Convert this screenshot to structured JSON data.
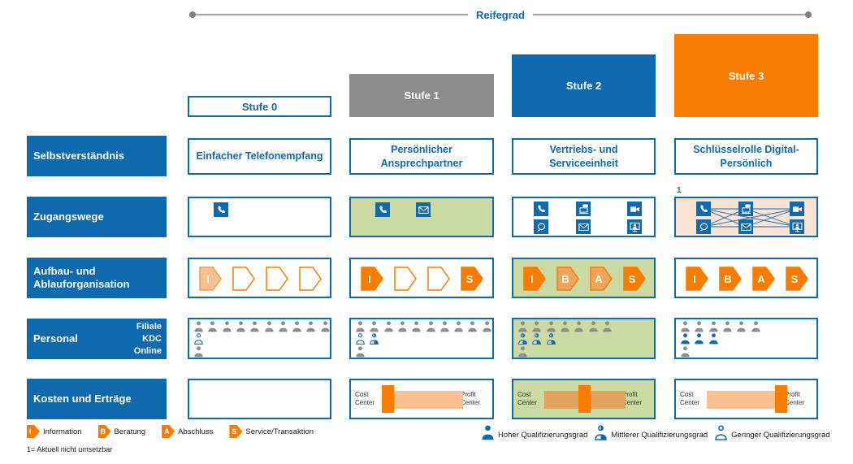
{
  "maturity_axis": {
    "label": "Reifegrad"
  },
  "columns": [
    {
      "label": "Stufe 0",
      "style": "outline"
    },
    {
      "label": "Stufe 1",
      "style": "gray"
    },
    {
      "label": "Stufe 2",
      "style": "blue"
    },
    {
      "label": "Stufe 3",
      "style": "orange"
    }
  ],
  "row_labels": [
    {
      "label": "Selbstverständnis"
    },
    {
      "label": "Zugangswege"
    },
    {
      "label": "Aufbau- und Ablauforganisation"
    },
    {
      "label": "Personal",
      "sublabels": [
        "Filiale",
        "KDC",
        "Online"
      ]
    },
    {
      "label": "Kosten und Erträge"
    }
  ],
  "selbstverstaendnis": [
    "Einfacher Telefonempfang",
    "Persönlicher Ansprechpartner",
    "Vertriebs- und Serviceeinheit",
    "Schlüsselrolle Digital-Persönlich"
  ],
  "zugangswege": [
    {
      "bg": "white",
      "layout": "single",
      "icons": [
        "phone-icon"
      ],
      "network": false,
      "note": ""
    },
    {
      "bg": "green",
      "layout": "single",
      "icons": [
        "phone-icon",
        "mail-icon"
      ],
      "network": false,
      "note": ""
    },
    {
      "bg": "white",
      "layout": "grid",
      "icons": [
        "phone-icon",
        "laptop-chat-icon",
        "video-camera-icon",
        "chat-bubble-icon",
        "mail-icon",
        "screen-person-icon"
      ],
      "network": false,
      "note": ""
    },
    {
      "bg": "peach",
      "layout": "grid",
      "icons": [
        "phone-icon",
        "laptop-chat-icon",
        "video-camera-icon",
        "chat-bubble-icon",
        "mail-icon",
        "screen-person-icon"
      ],
      "network": true,
      "note": "1"
    }
  ],
  "organisation": [
    {
      "bg": "white",
      "steps": [
        {
          "letter": "I",
          "fill": "light"
        },
        {
          "letter": "",
          "fill": "empty"
        },
        {
          "letter": "",
          "fill": "empty"
        },
        {
          "letter": "",
          "fill": "empty"
        }
      ]
    },
    {
      "bg": "white",
      "steps": [
        {
          "letter": "I",
          "fill": "solid"
        },
        {
          "letter": "",
          "fill": "empty"
        },
        {
          "letter": "",
          "fill": "empty"
        },
        {
          "letter": "S",
          "fill": "solid"
        }
      ]
    },
    {
      "bg": "green",
      "steps": [
        {
          "letter": "I",
          "fill": "solid"
        },
        {
          "letter": "B",
          "fill": "medium"
        },
        {
          "letter": "A",
          "fill": "medium"
        },
        {
          "letter": "S",
          "fill": "solid"
        }
      ]
    },
    {
      "bg": "white",
      "steps": [
        {
          "letter": "I",
          "fill": "solid"
        },
        {
          "letter": "B",
          "fill": "solid"
        },
        {
          "letter": "A",
          "fill": "solid"
        },
        {
          "letter": "S",
          "fill": "solid"
        }
      ]
    }
  ],
  "personal": [
    {
      "bg": "white",
      "filiale": [
        {
          "type": "gray",
          "count": 10
        }
      ],
      "kdc": [
        {
          "type": "low",
          "count": 1
        }
      ],
      "online": [
        {
          "type": "gray",
          "count": 1
        }
      ]
    },
    {
      "bg": "white",
      "filiale": [
        {
          "type": "gray",
          "count": 10
        }
      ],
      "kdc": [
        {
          "type": "low",
          "count": 1
        },
        {
          "type": "mid",
          "count": 1
        }
      ],
      "online": [
        {
          "type": "gray",
          "count": 1
        }
      ]
    },
    {
      "bg": "green",
      "filiale": [
        {
          "type": "gray",
          "count": 7
        }
      ],
      "kdc": [
        {
          "type": "mid",
          "count": 3
        }
      ],
      "online": [
        {
          "type": "gray",
          "count": 1
        }
      ]
    },
    {
      "bg": "white",
      "filiale": [
        {
          "type": "gray",
          "count": 6
        }
      ],
      "kdc": [
        {
          "type": "high",
          "count": 3
        }
      ],
      "online": [
        {
          "type": "gray",
          "count": 1
        }
      ]
    }
  ],
  "kosten": [
    {
      "bg": "white",
      "empty": true
    },
    {
      "bg": "white",
      "empty": false,
      "left_label": "Cost Center",
      "right_label": "Profit Center",
      "bar": "light",
      "marker": "left"
    },
    {
      "bg": "green",
      "empty": false,
      "left_label": "Cost Center",
      "right_label": "Profit Center",
      "bar": "dark",
      "marker": "center"
    },
    {
      "bg": "white",
      "empty": false,
      "left_label": "Cost Center",
      "right_label": "Profit Center",
      "bar": "light",
      "marker": "right"
    }
  ],
  "legend_steps": [
    {
      "letter": "I",
      "label": "Information"
    },
    {
      "letter": "B",
      "label": "Beratung"
    },
    {
      "letter": "A",
      "label": "Abschluss"
    },
    {
      "letter": "S",
      "label": "Service/Transaktion"
    }
  ],
  "legend_persons": [
    {
      "type": "high",
      "label": "Hoher Qualifizierungsgrad"
    },
    {
      "type": "mid",
      "label": "Mittlerer Qualifizierungsgrad"
    },
    {
      "type": "low",
      "label": "Geringer Qualifizierungsgrad"
    }
  ],
  "footnote": "1= Aktuell nicht umsetzbar",
  "colors": {
    "blue": "#0E6AAD",
    "gray": "#8C8C8C",
    "orange": "#F87C00",
    "light_orange": "#FAC090",
    "medium_orange": "#EDA55C",
    "green_bg": "#CBDAA3",
    "peach_bg": "#FBE3D4",
    "person_gray": "#8C8C8C",
    "axis_line": "#A6A6A6"
  }
}
